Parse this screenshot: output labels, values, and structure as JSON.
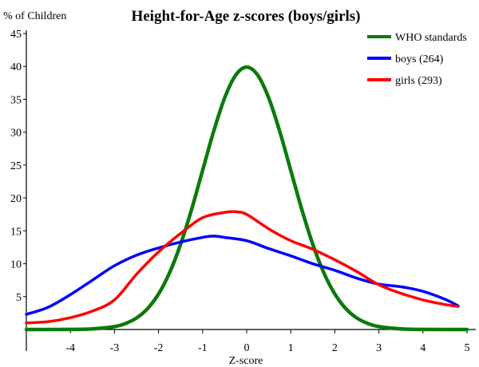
{
  "chart_data": {
    "type": "line",
    "title": "Height-for-Age z-scores (boys/girls)",
    "xlabel": "Z-score",
    "ylabel": "% of Children",
    "xlim": [
      -5,
      5
    ],
    "ylim": [
      0,
      45
    ],
    "x_ticks": [
      -4,
      -3,
      -2,
      -1,
      0,
      1,
      2,
      3,
      4,
      5
    ],
    "y_ticks": [
      5,
      10,
      15,
      20,
      25,
      30,
      35,
      40,
      45
    ],
    "legend_position": "top-right",
    "grid": false,
    "series": [
      {
        "name": "WHO standards",
        "color": "#0b7a0b",
        "points": [
          [
            -5,
            0
          ],
          [
            -4,
            0.01
          ],
          [
            -3.5,
            0.09
          ],
          [
            -3,
            0.44
          ],
          [
            -2.75,
            0.91
          ],
          [
            -2.5,
            1.75
          ],
          [
            -2.25,
            3.17
          ],
          [
            -2,
            5.4
          ],
          [
            -1.75,
            8.63
          ],
          [
            -1.5,
            12.95
          ],
          [
            -1.25,
            18.26
          ],
          [
            -1,
            24.2
          ],
          [
            -0.75,
            30.11
          ],
          [
            -0.5,
            35.21
          ],
          [
            -0.25,
            38.67
          ],
          [
            0,
            39.89
          ],
          [
            0.25,
            38.67
          ],
          [
            0.5,
            35.21
          ],
          [
            0.75,
            30.11
          ],
          [
            1,
            24.2
          ],
          [
            1.25,
            18.26
          ],
          [
            1.5,
            12.95
          ],
          [
            1.75,
            8.63
          ],
          [
            2,
            5.4
          ],
          [
            2.25,
            3.17
          ],
          [
            2.5,
            1.75
          ],
          [
            2.75,
            0.91
          ],
          [
            3,
            0.44
          ],
          [
            3.5,
            0.09
          ],
          [
            4,
            0.01
          ],
          [
            5,
            0
          ]
        ]
      },
      {
        "name": "boys (264)",
        "color": "#0000ff",
        "points": [
          [
            -5,
            2.3
          ],
          [
            -4.5,
            3.4
          ],
          [
            -4,
            5.3
          ],
          [
            -3.5,
            7.5
          ],
          [
            -3,
            9.7
          ],
          [
            -2.5,
            11.3
          ],
          [
            -2,
            12.4
          ],
          [
            -1.5,
            13.3
          ],
          [
            -1,
            14
          ],
          [
            -0.75,
            14.2
          ],
          [
            -0.5,
            14
          ],
          [
            0,
            13.5
          ],
          [
            0.5,
            12.3
          ],
          [
            1,
            11.2
          ],
          [
            1.5,
            10
          ],
          [
            2,
            9
          ],
          [
            2.5,
            7.8
          ],
          [
            3,
            6.9
          ],
          [
            3.5,
            6.5
          ],
          [
            4,
            5.8
          ],
          [
            4.5,
            4.6
          ],
          [
            4.8,
            3.6
          ]
        ]
      },
      {
        "name": "girls (293)",
        "color": "#ff0000",
        "points": [
          [
            -5,
            1
          ],
          [
            -4.5,
            1.2
          ],
          [
            -4,
            1.8
          ],
          [
            -3.5,
            2.8
          ],
          [
            -3,
            4.5
          ],
          [
            -2.5,
            8.4
          ],
          [
            -2,
            11.8
          ],
          [
            -1.5,
            14.6
          ],
          [
            -1,
            17
          ],
          [
            -0.5,
            17.8
          ],
          [
            -0.25,
            17.9
          ],
          [
            0,
            17.5
          ],
          [
            0.5,
            15.3
          ],
          [
            1,
            13.5
          ],
          [
            1.5,
            12.2
          ],
          [
            2,
            10.6
          ],
          [
            2.5,
            8.8
          ],
          [
            3,
            6.8
          ],
          [
            3.5,
            5.5
          ],
          [
            4,
            4.5
          ],
          [
            4.5,
            3.8
          ],
          [
            4.8,
            3.5
          ]
        ]
      }
    ]
  }
}
